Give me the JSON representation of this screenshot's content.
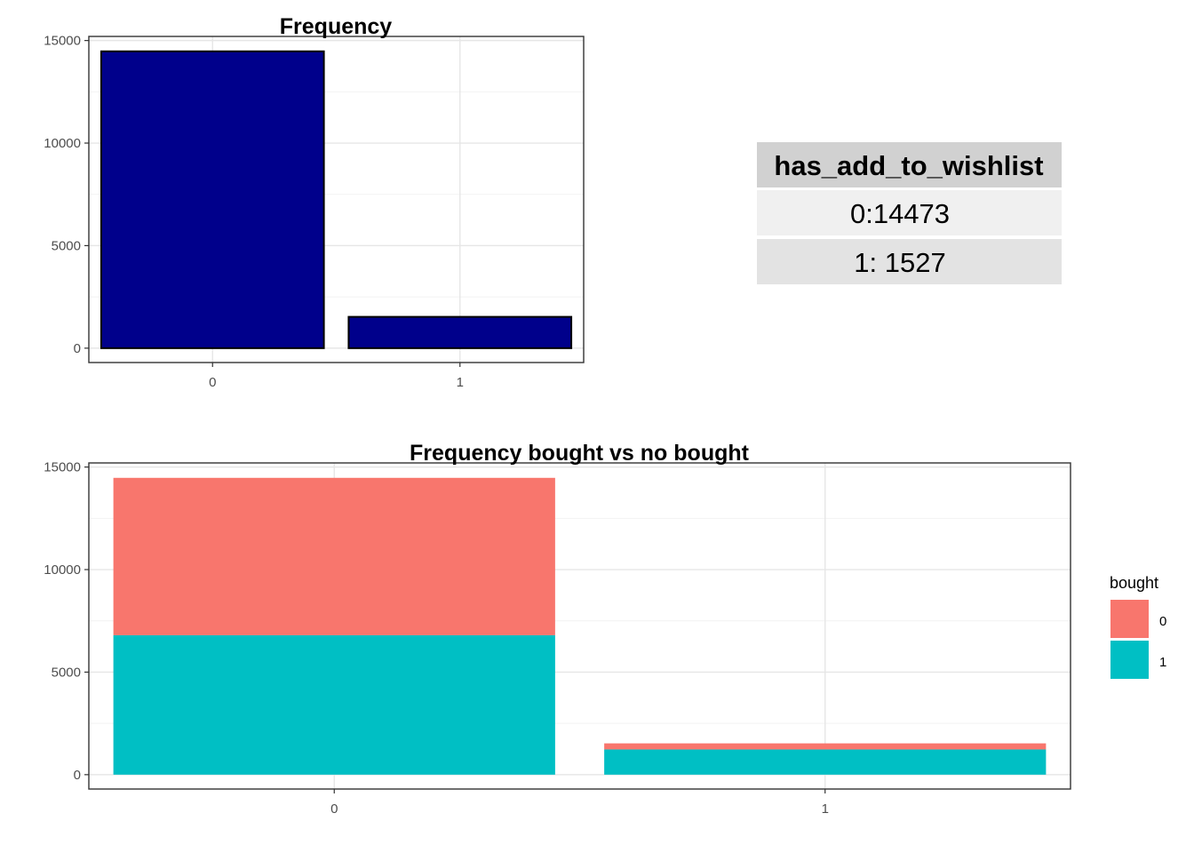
{
  "chart_data": [
    {
      "type": "bar",
      "title": "Frequency",
      "xlabel": "",
      "ylabel": "",
      "categories": [
        "0",
        "1"
      ],
      "values": [
        14473,
        1527
      ],
      "colors": {
        "fill": "#00008B",
        "stroke": "#000000"
      },
      "ylim": [
        -700,
        15200
      ],
      "yticks": [
        0,
        5000,
        10000,
        15000
      ],
      "grid": true
    },
    {
      "type": "bar",
      "stacked": true,
      "title": "Frequency bought vs no bought",
      "xlabel": "",
      "ylabel": "",
      "categories": [
        "0",
        "1"
      ],
      "series": [
        {
          "name": "1",
          "values": [
            6800,
            1230
          ],
          "color": "#00BFC4"
        },
        {
          "name": "0",
          "values": [
            7673,
            297
          ],
          "color": "#F8766D"
        }
      ],
      "ylim": [
        -700,
        15200
      ],
      "yticks": [
        0,
        5000,
        10000,
        15000
      ],
      "grid": true,
      "legend": {
        "title": "bought",
        "placement": "right",
        "entries": [
          "0",
          "1"
        ]
      }
    }
  ],
  "summary_table": {
    "header": "has_add_to_wishlist",
    "rows": [
      "0:14473",
      "1: 1527"
    ],
    "colors": {
      "header_bg": "#D1D1D1",
      "row_bg": [
        "#F0F0F0",
        "#E3E3E3"
      ]
    }
  }
}
